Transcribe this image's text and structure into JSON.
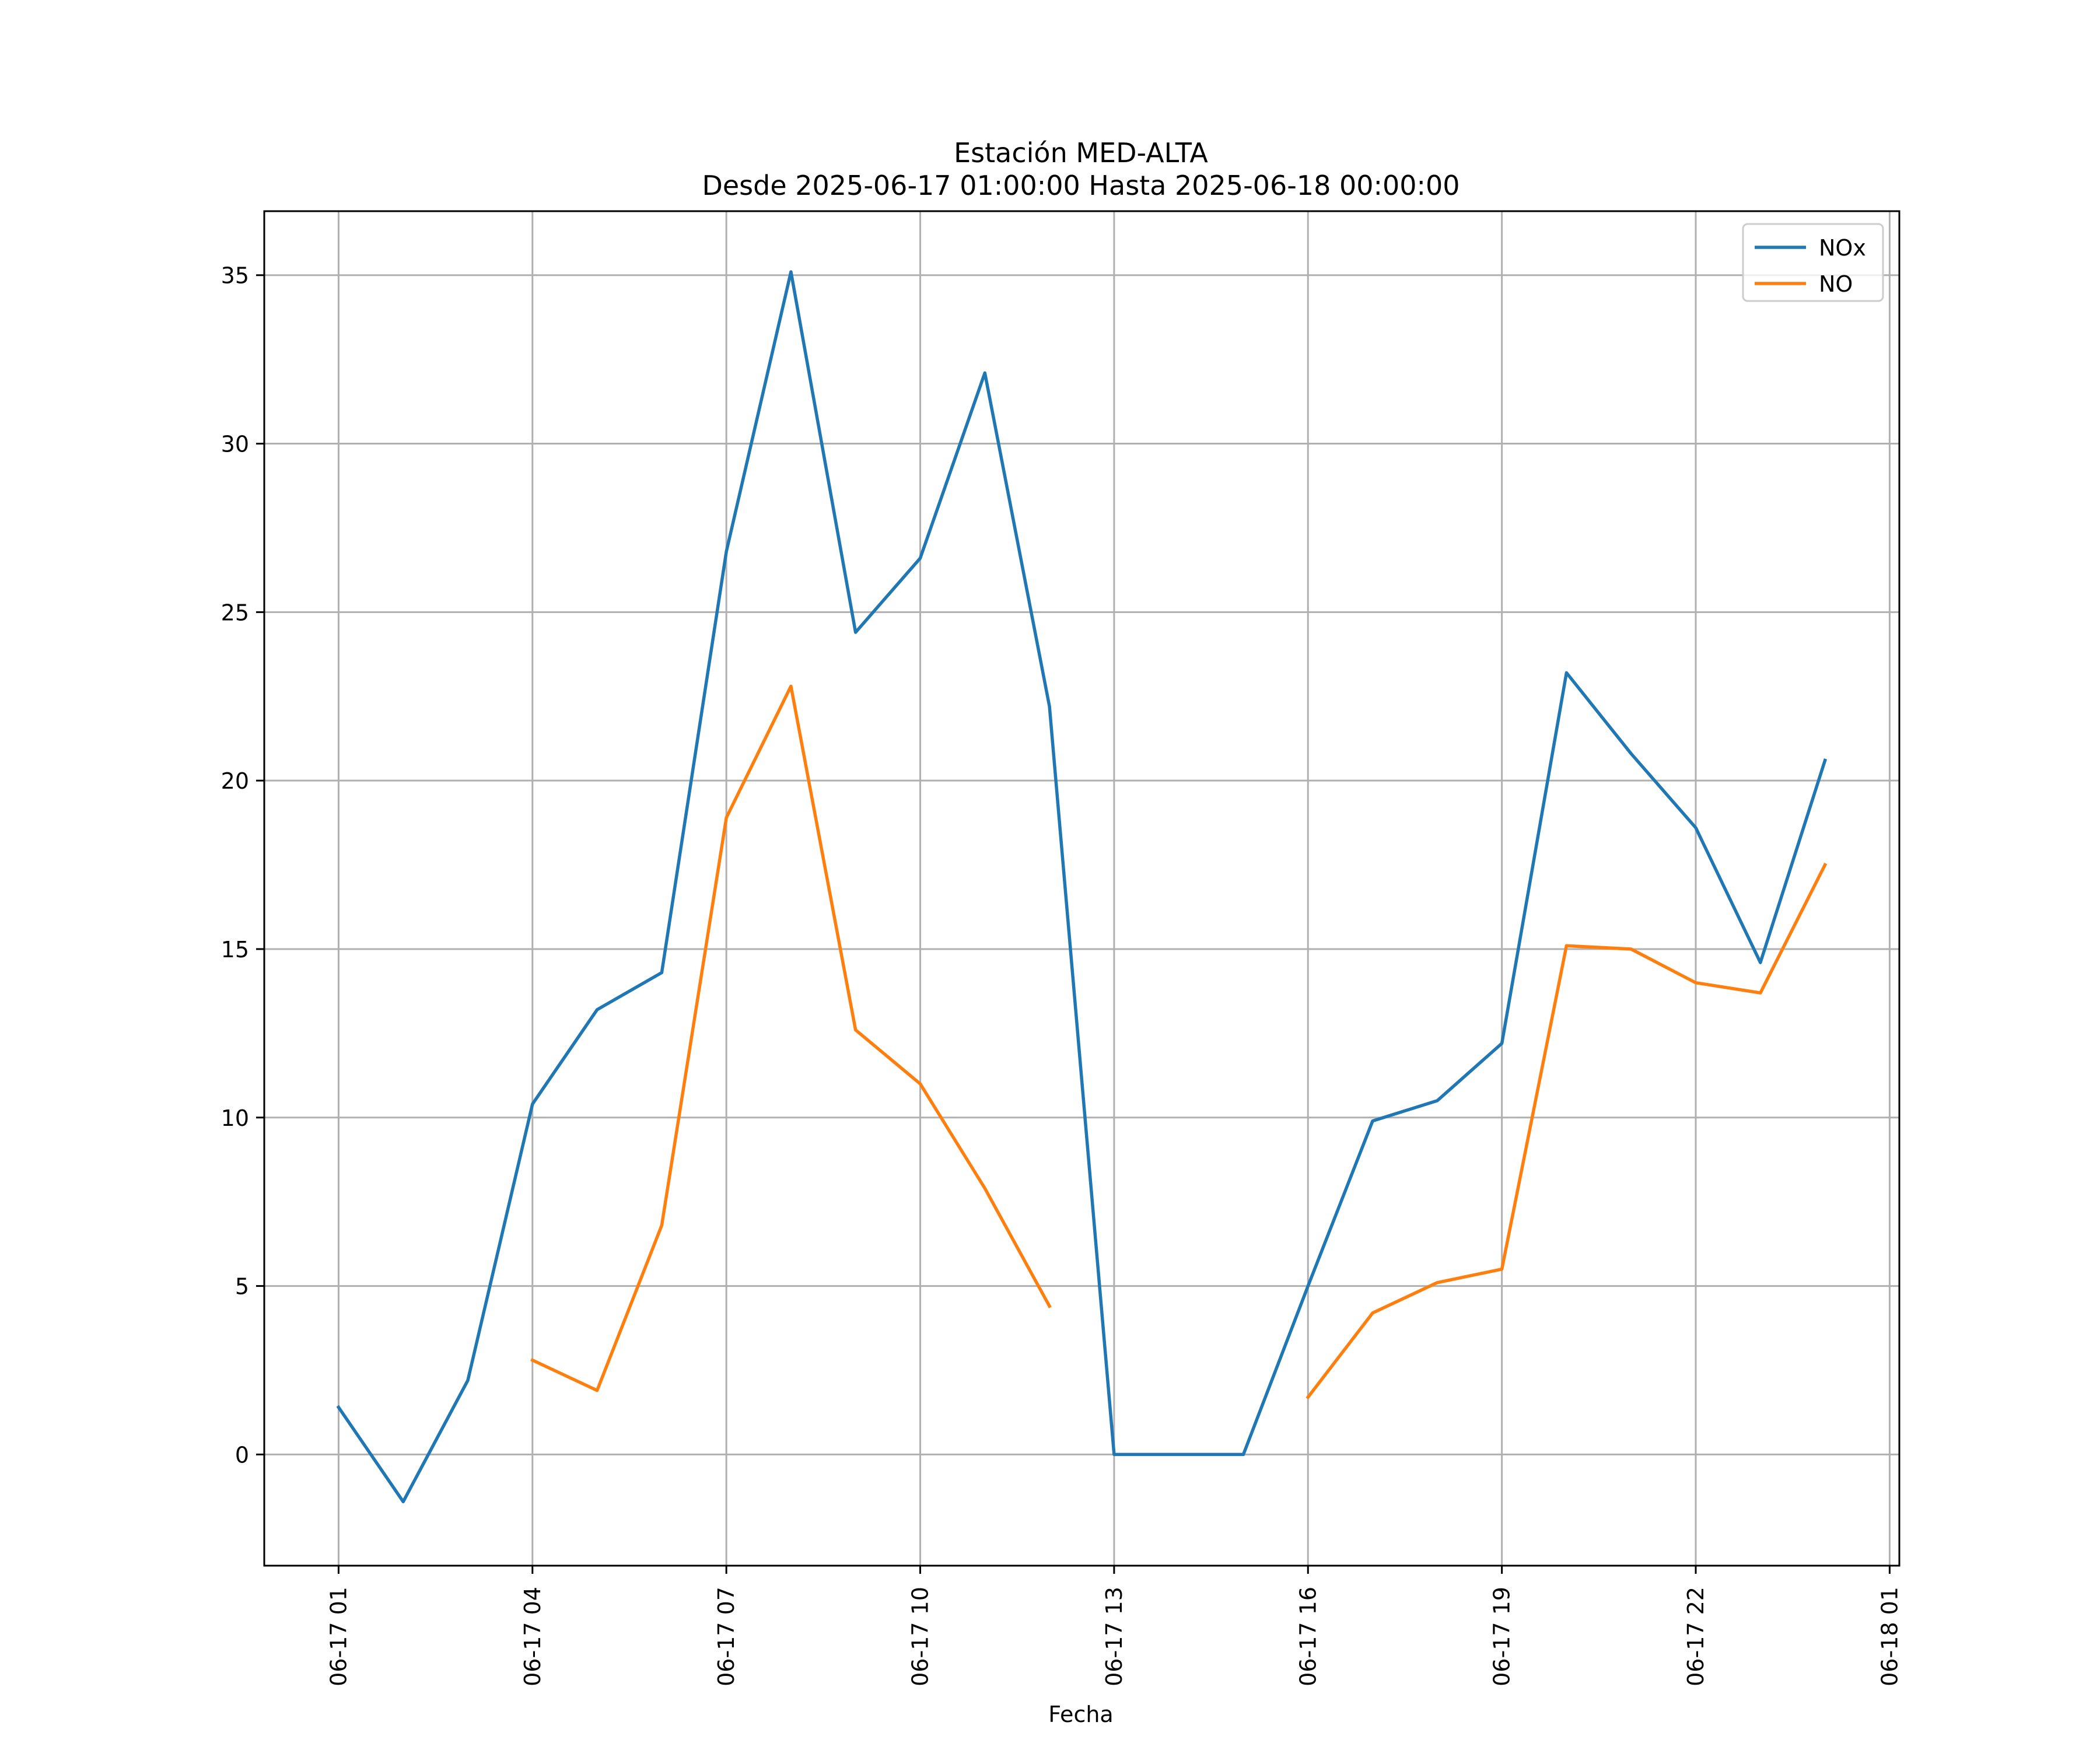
{
  "chart_data": {
    "type": "line",
    "title": "Estación MED-ALTA",
    "subtitle": "Desde 2025-06-17 01:00:00 Hasta 2025-06-18 00:00:00",
    "xlabel": "Fecha",
    "ylabel": "",
    "x": [
      "2025-06-17 01:00",
      "2025-06-17 02:00",
      "2025-06-17 03:00",
      "2025-06-17 04:00",
      "2025-06-17 05:00",
      "2025-06-17 06:00",
      "2025-06-17 07:00",
      "2025-06-17 08:00",
      "2025-06-17 09:00",
      "2025-06-17 10:00",
      "2025-06-17 11:00",
      "2025-06-17 12:00",
      "2025-06-17 13:00",
      "2025-06-17 14:00",
      "2025-06-17 15:00",
      "2025-06-17 16:00",
      "2025-06-17 17:00",
      "2025-06-17 18:00",
      "2025-06-17 19:00",
      "2025-06-17 20:00",
      "2025-06-17 21:00",
      "2025-06-17 22:00",
      "2025-06-17 23:00",
      "2025-06-18 00:00"
    ],
    "series": [
      {
        "name": "NOx",
        "color": "#1f77b4",
        "values": [
          1.4,
          -1.4,
          2.2,
          10.4,
          13.2,
          14.3,
          26.8,
          35.1,
          24.4,
          26.6,
          32.1,
          22.2,
          0.0,
          0.0,
          0.0,
          5.0,
          9.9,
          10.5,
          12.2,
          23.2,
          20.8,
          18.6,
          14.6,
          20.6
        ]
      },
      {
        "name": "NO",
        "color": "#ff7f0e",
        "values": [
          null,
          null,
          null,
          2.8,
          1.9,
          6.8,
          18.9,
          22.8,
          12.6,
          11.0,
          7.9,
          4.4,
          null,
          null,
          null,
          1.7,
          4.2,
          5.1,
          5.5,
          15.1,
          15.0,
          14.0,
          13.7,
          17.5
        ]
      }
    ],
    "xticks": [
      "06-17 01",
      "06-17 04",
      "06-17 07",
      "06-17 10",
      "06-17 13",
      "06-17 16",
      "06-17 19",
      "06-17 22",
      "06-18 01"
    ],
    "xlim": [
      "2025-06-16 23:51",
      "2025-06-18 01:09"
    ],
    "yticks": [
      0,
      5,
      10,
      15,
      20,
      25,
      30,
      35
    ],
    "ylim": [
      -3.3,
      36.9
    ],
    "grid": true,
    "legend": "upper right"
  }
}
